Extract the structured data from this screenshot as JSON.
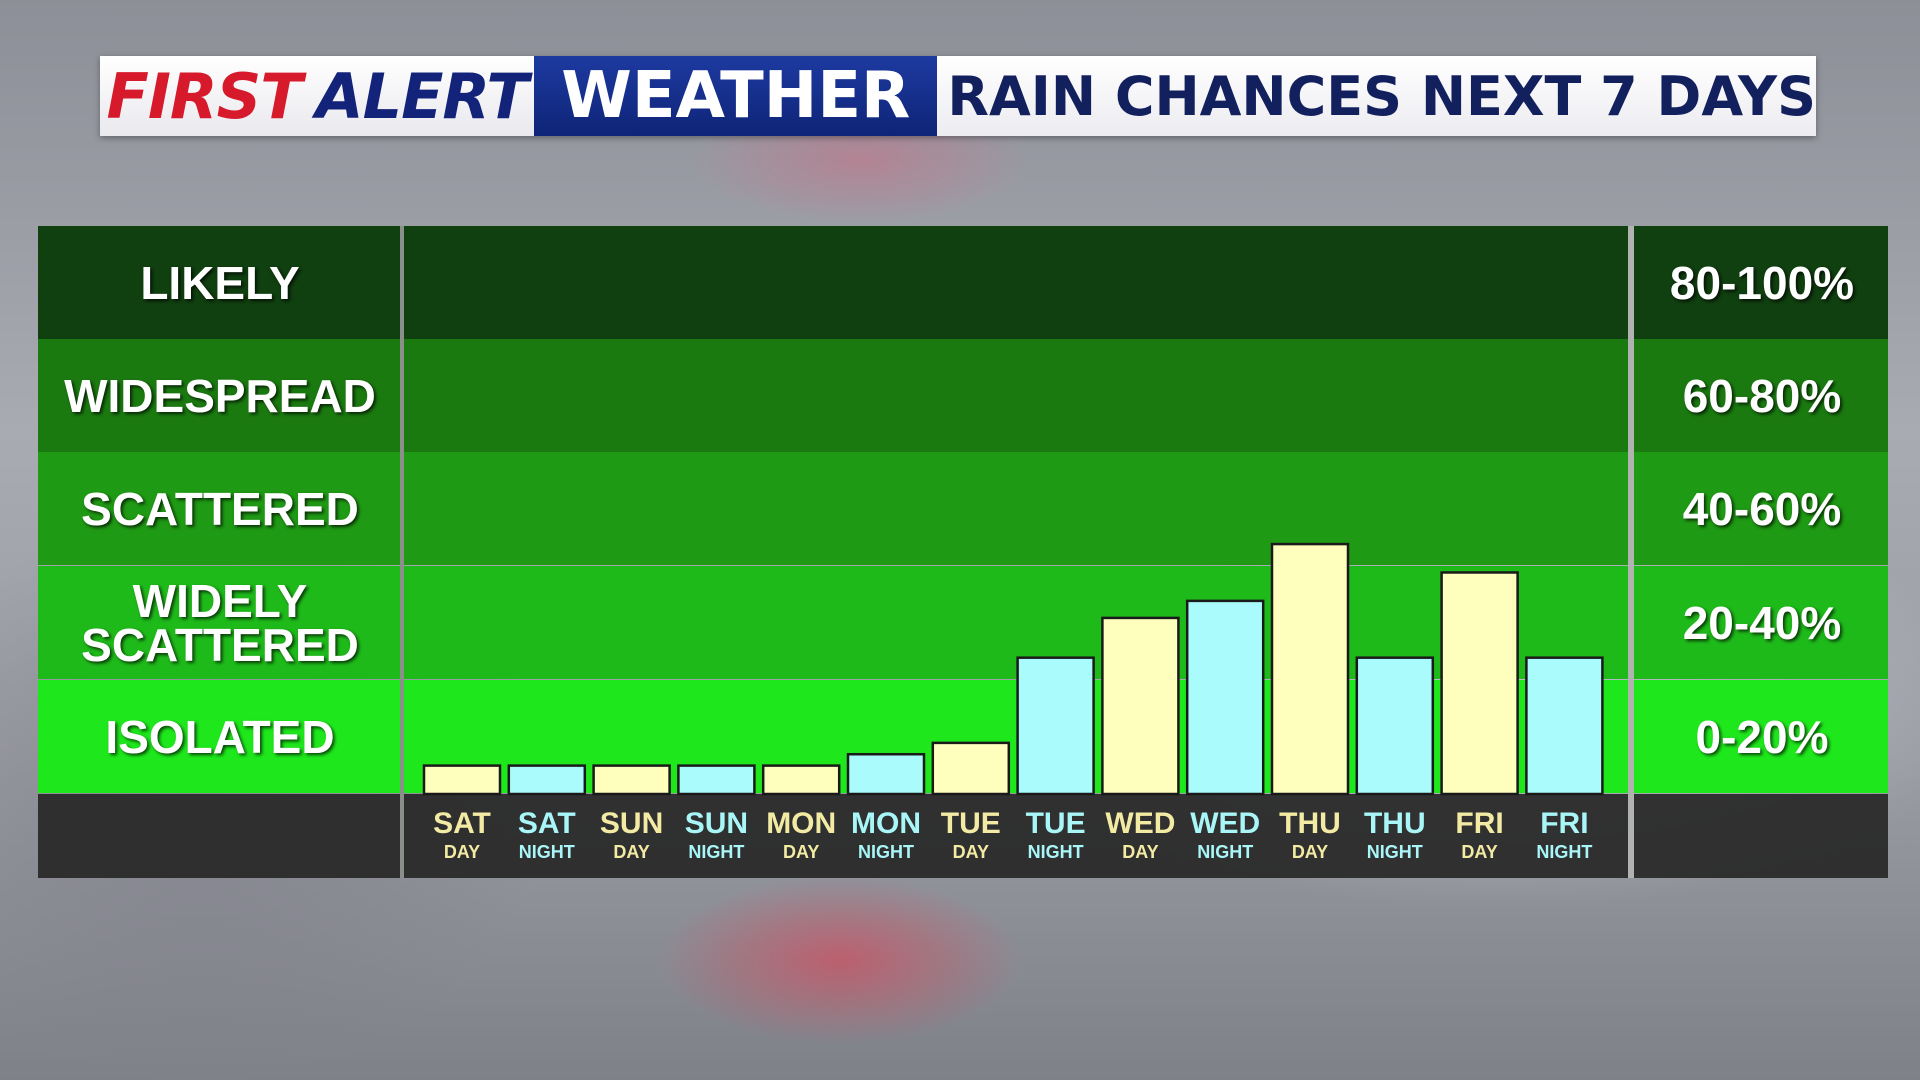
{
  "banner": {
    "brand_first": "FIRST",
    "brand_alert": "ALERT",
    "brand_weather": "WEATHER",
    "title": "RAIN CHANCES NEXT 7 DAYS"
  },
  "colors": {
    "band_likely": "#103f10",
    "band_widespread": "#1a7a10",
    "band_scattered": "#1f9a14",
    "band_widely_scattered": "#1eba1a",
    "band_isolated": "#1ee81c",
    "day_bar": "#fefebd",
    "night_bar": "#a9fbfc",
    "day_label": "#f3eba4",
    "night_label": "#a9f6f8",
    "title_red": "#d61a2c",
    "title_navy": "#14237a",
    "weather_blue": "#1b3a9c"
  },
  "bands": [
    {
      "label": "LIKELY",
      "range": "80-100%"
    },
    {
      "label": "WIDESPREAD",
      "range": "60-80%"
    },
    {
      "label": "SCATTERED",
      "range": "40-60%"
    },
    {
      "label": "WIDELY SCATTERED",
      "range": "20-40%"
    },
    {
      "label": "ISOLATED",
      "range": "0-20%"
    }
  ],
  "chart_data": {
    "type": "bar",
    "ylim": [
      0,
      100
    ],
    "categories": [
      {
        "day": "SAT",
        "period": "DAY"
      },
      {
        "day": "SAT",
        "period": "NIGHT"
      },
      {
        "day": "SUN",
        "period": "DAY"
      },
      {
        "day": "SUN",
        "period": "NIGHT"
      },
      {
        "day": "MON",
        "period": "DAY"
      },
      {
        "day": "MON",
        "period": "NIGHT"
      },
      {
        "day": "TUE",
        "period": "DAY"
      },
      {
        "day": "TUE",
        "period": "NIGHT"
      },
      {
        "day": "WED",
        "period": "DAY"
      },
      {
        "day": "WED",
        "period": "NIGHT"
      },
      {
        "day": "THU",
        "period": "DAY"
      },
      {
        "day": "THU",
        "period": "NIGHT"
      },
      {
        "day": "FRI",
        "period": "DAY"
      },
      {
        "day": "FRI",
        "period": "NIGHT"
      }
    ],
    "values": [
      5,
      5,
      5,
      5,
      5,
      7,
      9,
      24,
      31,
      34,
      44,
      24,
      39,
      24
    ],
    "legend": "none",
    "grid": false
  }
}
